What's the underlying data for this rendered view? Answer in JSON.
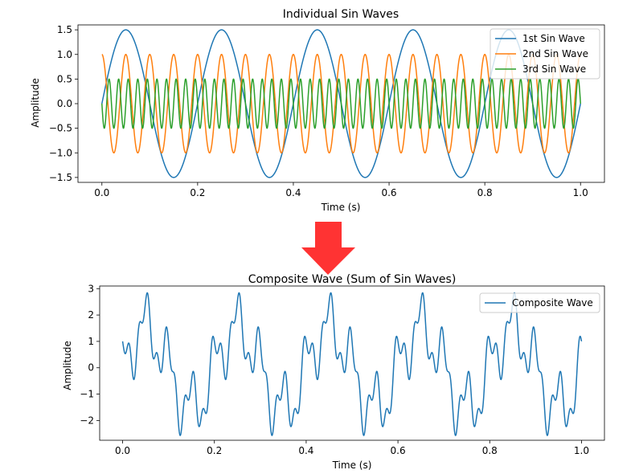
{
  "chart_data": [
    {
      "type": "line",
      "title": "Individual Sin Waves",
      "xlabel": "Time (s)",
      "ylabel": "Amplitude",
      "xlim": [
        -0.05,
        1.05
      ],
      "ylim": [
        -1.6,
        1.6
      ],
      "xticks": [
        0.0,
        0.2,
        0.4,
        0.6,
        0.8,
        1.0
      ],
      "xtick_labels": [
        "0.0",
        "0.2",
        "0.4",
        "0.6",
        "0.8",
        "1.0"
      ],
      "yticks": [
        -1.5,
        -1.0,
        -0.5,
        0.0,
        0.5,
        1.0,
        1.5
      ],
      "ytick_labels": [
        "−1.5",
        "−1.0",
        "−0.5",
        "0.0",
        "0.5",
        "1.0",
        "1.5"
      ],
      "grid": false,
      "legend_position": "upper-right",
      "series": [
        {
          "name": "1st Sin Wave",
          "color": "#1f77b4",
          "amplitude": 1.5,
          "frequency_hz": 5,
          "phase": "sin"
        },
        {
          "name": "2nd Sin Wave",
          "color": "#ff7f0e",
          "amplitude": 1.0,
          "frequency_hz": 20,
          "phase": "cos"
        },
        {
          "name": "3rd Sin Wave",
          "color": "#2ca02c",
          "amplitude": 0.5,
          "frequency_hz": 50,
          "phase": "-sin"
        }
      ],
      "x_range": [
        0.0,
        1.0
      ]
    },
    {
      "type": "line",
      "title": "Composite Wave (Sum of Sin Waves)",
      "xlabel": "Time (s)",
      "ylabel": "Amplitude",
      "xlim": [
        -0.05,
        1.05
      ],
      "ylim": [
        -2.75,
        3.1
      ],
      "xticks": [
        0.0,
        0.2,
        0.4,
        0.6,
        0.8,
        1.0
      ],
      "xtick_labels": [
        "0.0",
        "0.2",
        "0.4",
        "0.6",
        "0.8",
        "1.0"
      ],
      "yticks": [
        -2,
        -1,
        0,
        1,
        2,
        3
      ],
      "ytick_labels": [
        "−2",
        "−1",
        "0",
        "1",
        "2",
        "3"
      ],
      "grid": false,
      "legend_position": "upper-right",
      "series": [
        {
          "name": "Composite Wave",
          "color": "#1f77b4",
          "formula": "sum of 1st, 2nd and 3rd sin waves"
        }
      ],
      "x_range": [
        0.0,
        1.0
      ]
    }
  ],
  "arrow": {
    "color": "#ff3333",
    "icon": "down-arrow-icon"
  }
}
